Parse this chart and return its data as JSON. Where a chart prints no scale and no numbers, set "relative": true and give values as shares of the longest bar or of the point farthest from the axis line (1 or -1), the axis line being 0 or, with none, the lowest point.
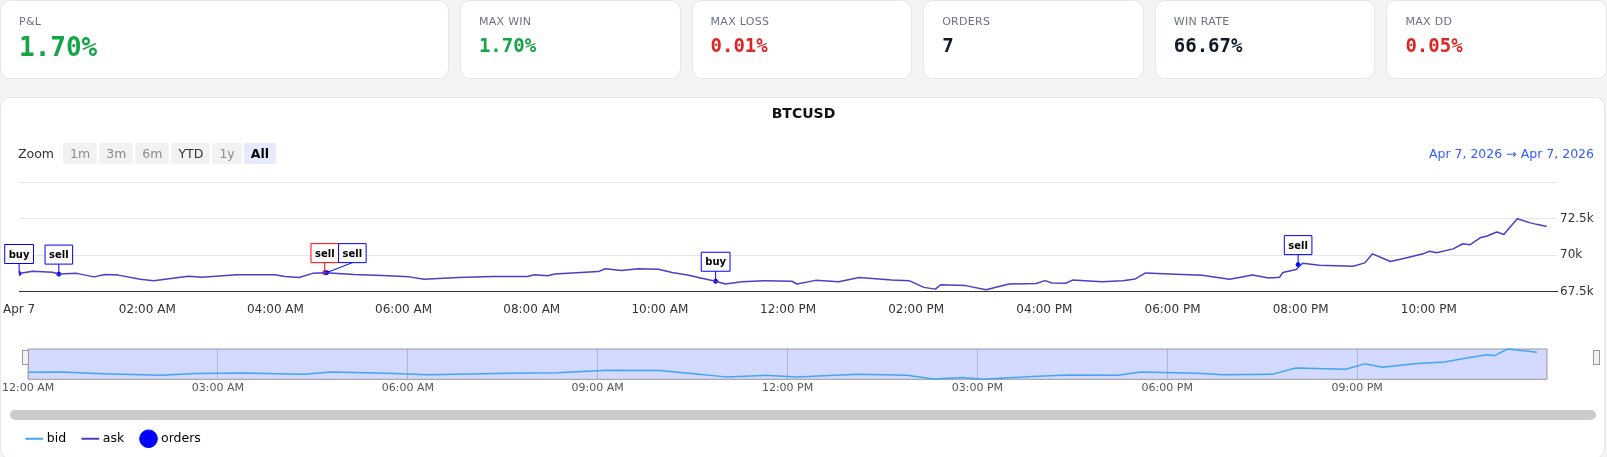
{
  "chart_data": [
    {
      "type": "other",
      "annotations": [
        "P&L",
        "1.70%",
        "MAX WIN",
        "1.70%",
        "MAX LOSS",
        "0.01%",
        "ORDERS",
        "7",
        "WIN RATE",
        "66.67%",
        "MAX DD",
        "0.05%"
      ]
    },
    {
      "type": "line",
      "title": "BTCUSD",
      "legend": "bottom",
      "annotations": [
        "Zoom",
        "1m",
        "3m",
        "6m",
        "YTD",
        "1y",
        "All",
        "Apr 7, 2026",
        "→",
        "Apr 7, 2026"
      ],
      "xlim": [
        0,
        24
      ],
      "xticks": [
        {
          "value": 0,
          "label": "Apr 7"
        },
        {
          "value": 2,
          "label": "02:00 AM"
        },
        {
          "value": 4,
          "label": "04:00 AM"
        },
        {
          "value": 6,
          "label": "06:00 AM"
        },
        {
          "value": 8,
          "label": "08:00 AM"
        },
        {
          "value": 10,
          "label": "10:00 AM"
        },
        {
          "value": 12,
          "label": "12:00 PM"
        },
        {
          "value": 14,
          "label": "02:00 PM"
        },
        {
          "value": 16,
          "label": "04:00 PM"
        },
        {
          "value": 18,
          "label": "06:00 PM"
        },
        {
          "value": 20,
          "label": "08:00 PM"
        },
        {
          "value": 22,
          "label": "10:00 PM"
        }
      ],
      "ylim": [
        67500,
        75000
      ],
      "yticks": [
        {
          "value": 67500,
          "label": "67.5k"
        },
        {
          "value": 70000,
          "label": "70k"
        },
        {
          "value": 72500,
          "label": "72.5k"
        },
        {
          "value": 75000,
          "label": null
        }
      ],
      "grid": "y",
      "series": [
        {
          "name": "ask",
          "type": "line",
          "color": "#4b3fc7",
          "x": [
            0,
            0.21,
            0.52,
            0.62,
            0.9,
            1.17,
            1.34,
            1.55,
            1.89,
            2.1,
            2.64,
            2.85,
            3.4,
            3.99,
            4.15,
            4.37,
            4.58,
            4.78,
            5.23,
            5.67,
            6.09,
            6.32,
            6.85,
            7.39,
            7.94,
            8.04,
            8.25,
            8.36,
            9.04,
            9.15,
            9.4,
            9.66,
            9.98,
            10.19,
            10.45,
            10.6,
            10.87,
            11.02,
            11.28,
            11.64,
            12.06,
            12.14,
            12.43,
            12.79,
            13.11,
            13.62,
            13.89,
            14.12,
            14.3,
            14.38,
            14.77,
            15.09,
            15.45,
            15.87,
            16.01,
            16.12,
            16.33,
            16.44,
            16.9,
            17.22,
            17.42,
            17.58,
            17.95,
            18.46,
            18.89,
            19.25,
            19.5,
            19.67,
            19.72,
            19.93,
            20.03,
            20.29,
            20.82,
            21.0,
            21.12,
            21.4,
            21.59,
            21.8,
            21.91,
            22.01,
            22.12,
            22.38,
            22.53,
            22.64,
            22.8,
            22.91,
            23.06,
            23.17,
            23.27,
            23.38,
            23.57,
            23.68,
            23.84
          ],
          "values": [
            68740,
            68890,
            68820,
            68700,
            68750,
            68510,
            68670,
            68630,
            68340,
            68250,
            68560,
            68490,
            68650,
            68650,
            68540,
            68470,
            68750,
            68800,
            68670,
            68610,
            68510,
            68340,
            68470,
            68540,
            68540,
            68650,
            68580,
            68710,
            68870,
            69070,
            68940,
            69070,
            69030,
            68810,
            68620,
            68460,
            68210,
            68020,
            68180,
            68250,
            68210,
            68020,
            68270,
            68180,
            68460,
            68290,
            68250,
            67790,
            67670,
            67970,
            67910,
            67630,
            68020,
            68050,
            68250,
            68090,
            68070,
            68290,
            68180,
            68250,
            68370,
            68780,
            68710,
            68620,
            68340,
            68640,
            68430,
            68480,
            68810,
            69010,
            69450,
            69310,
            69240,
            69470,
            70090,
            69560,
            69750,
            69970,
            70090,
            70270,
            70160,
            70430,
            70780,
            70710,
            71190,
            71310,
            71590,
            71420,
            71930,
            72500,
            72230,
            72110,
            71970
          ]
        },
        {
          "name": "orders",
          "type": "scatter",
          "marker": "circle",
          "color": "#0000ff",
          "x": [
            0,
            0.62,
            4.77,
            4.8,
            10.87,
            19.96
          ],
          "values": [
            68740,
            68700,
            68800,
            68800,
            68210,
            69350
          ],
          "value_labels": [
            "buy",
            "sell",
            "sell",
            "sell",
            "buy",
            "sell"
          ],
          "colors": [
            "#0000ff",
            "#0000ff",
            "#ff0000",
            "#0000ff",
            "#0000ff",
            "#0000ff"
          ]
        }
      ]
    },
    {
      "type": "line",
      "relative": true,
      "tick_labels": "x",
      "grid": "x",
      "xlim": [
        0,
        24
      ],
      "xticks": [
        {
          "value": 0,
          "label": "12:00 AM"
        },
        {
          "value": 3,
          "label": "03:00 AM"
        },
        {
          "value": 6,
          "label": "06:00 AM"
        },
        {
          "value": 9,
          "label": "09:00 AM"
        },
        {
          "value": 12,
          "label": "12:00 PM"
        },
        {
          "value": 15,
          "label": "03:00 PM"
        },
        {
          "value": 18,
          "label": "06:00 PM"
        },
        {
          "value": 21,
          "label": "09:00 PM"
        }
      ],
      "bands": [
        {
          "axis": "x",
          "from": 0,
          "to": 24,
          "color": "#d4d9ff"
        }
      ],
      "series": [
        {
          "name": "bid",
          "color": "#41a6f5",
          "x": [
            0,
            0.52,
            1.17,
            2.1,
            2.64,
            3.4,
            4.37,
            4.78,
            5.67,
            6.32,
            7.39,
            8.36,
            9.15,
            9.98,
            10.6,
            11.02,
            11.64,
            12.14,
            13.11,
            13.89,
            14.3,
            14.77,
            15.09,
            15.87,
            16.44,
            17.22,
            17.58,
            18.46,
            18.89,
            19.67,
            20.03,
            20.82,
            21.12,
            21.4,
            21.91,
            22.38,
            22.8,
            23.06,
            23.17,
            23.38,
            23.84
          ],
          "values": [
            0.23,
            0.24,
            0.18,
            0.13,
            0.19,
            0.21,
            0.17,
            0.24,
            0.2,
            0.15,
            0.19,
            0.22,
            0.3,
            0.29,
            0.17,
            0.08,
            0.13,
            0.08,
            0.17,
            0.13,
            0.01,
            0.06,
            0,
            0.09,
            0.14,
            0.13,
            0.24,
            0.2,
            0.15,
            0.17,
            0.37,
            0.33,
            0.51,
            0.4,
            0.51,
            0.57,
            0.73,
            0.81,
            0.78,
            1,
            0.89
          ]
        }
      ]
    }
  ]
}
